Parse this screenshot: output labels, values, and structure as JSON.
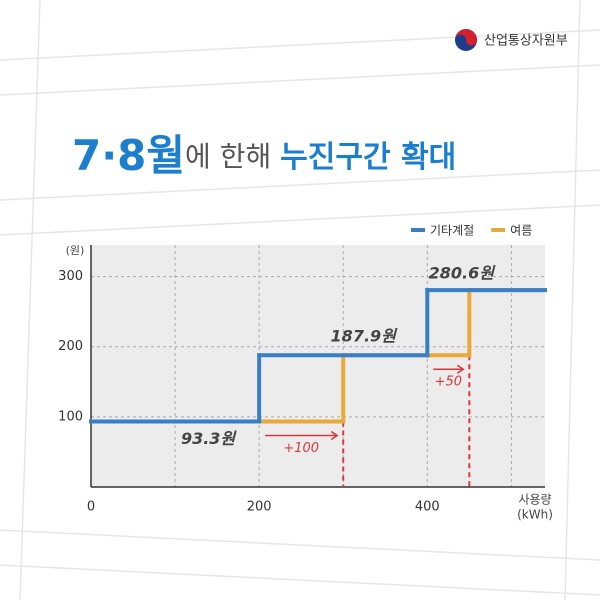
{
  "header": {
    "ministry": "산업통상자원부"
  },
  "chart_data": {
    "type": "step",
    "title": {
      "lead": "7·8월",
      "middle": "에 한해 ",
      "tail": "누진구간 확대"
    },
    "ylabel": "(원)",
    "xlabel": [
      "사용량",
      "(kWh)"
    ],
    "xlim": [
      0,
      540
    ],
    "ylim": [
      0,
      345
    ],
    "xticks": [
      0,
      200,
      400
    ],
    "xgrid": [
      100,
      200,
      300,
      400,
      500
    ],
    "yticks": [
      100,
      200,
      300
    ],
    "grid": true,
    "legend": "top-right",
    "series": [
      {
        "name": "기타계절",
        "color": "#3a7fc4",
        "x": [
          0,
          200,
          400
        ],
        "values": [
          93.3,
          187.9,
          280.6
        ],
        "value_labels": [
          "93.3원",
          "187.9원",
          "280.6원"
        ]
      },
      {
        "name": "여름",
        "color": "#e8a93a",
        "x": [
          0,
          300,
          450
        ],
        "values": [
          93.3,
          187.9,
          280.6
        ]
      }
    ],
    "annotations": [
      "+100",
      "+50"
    ]
  }
}
